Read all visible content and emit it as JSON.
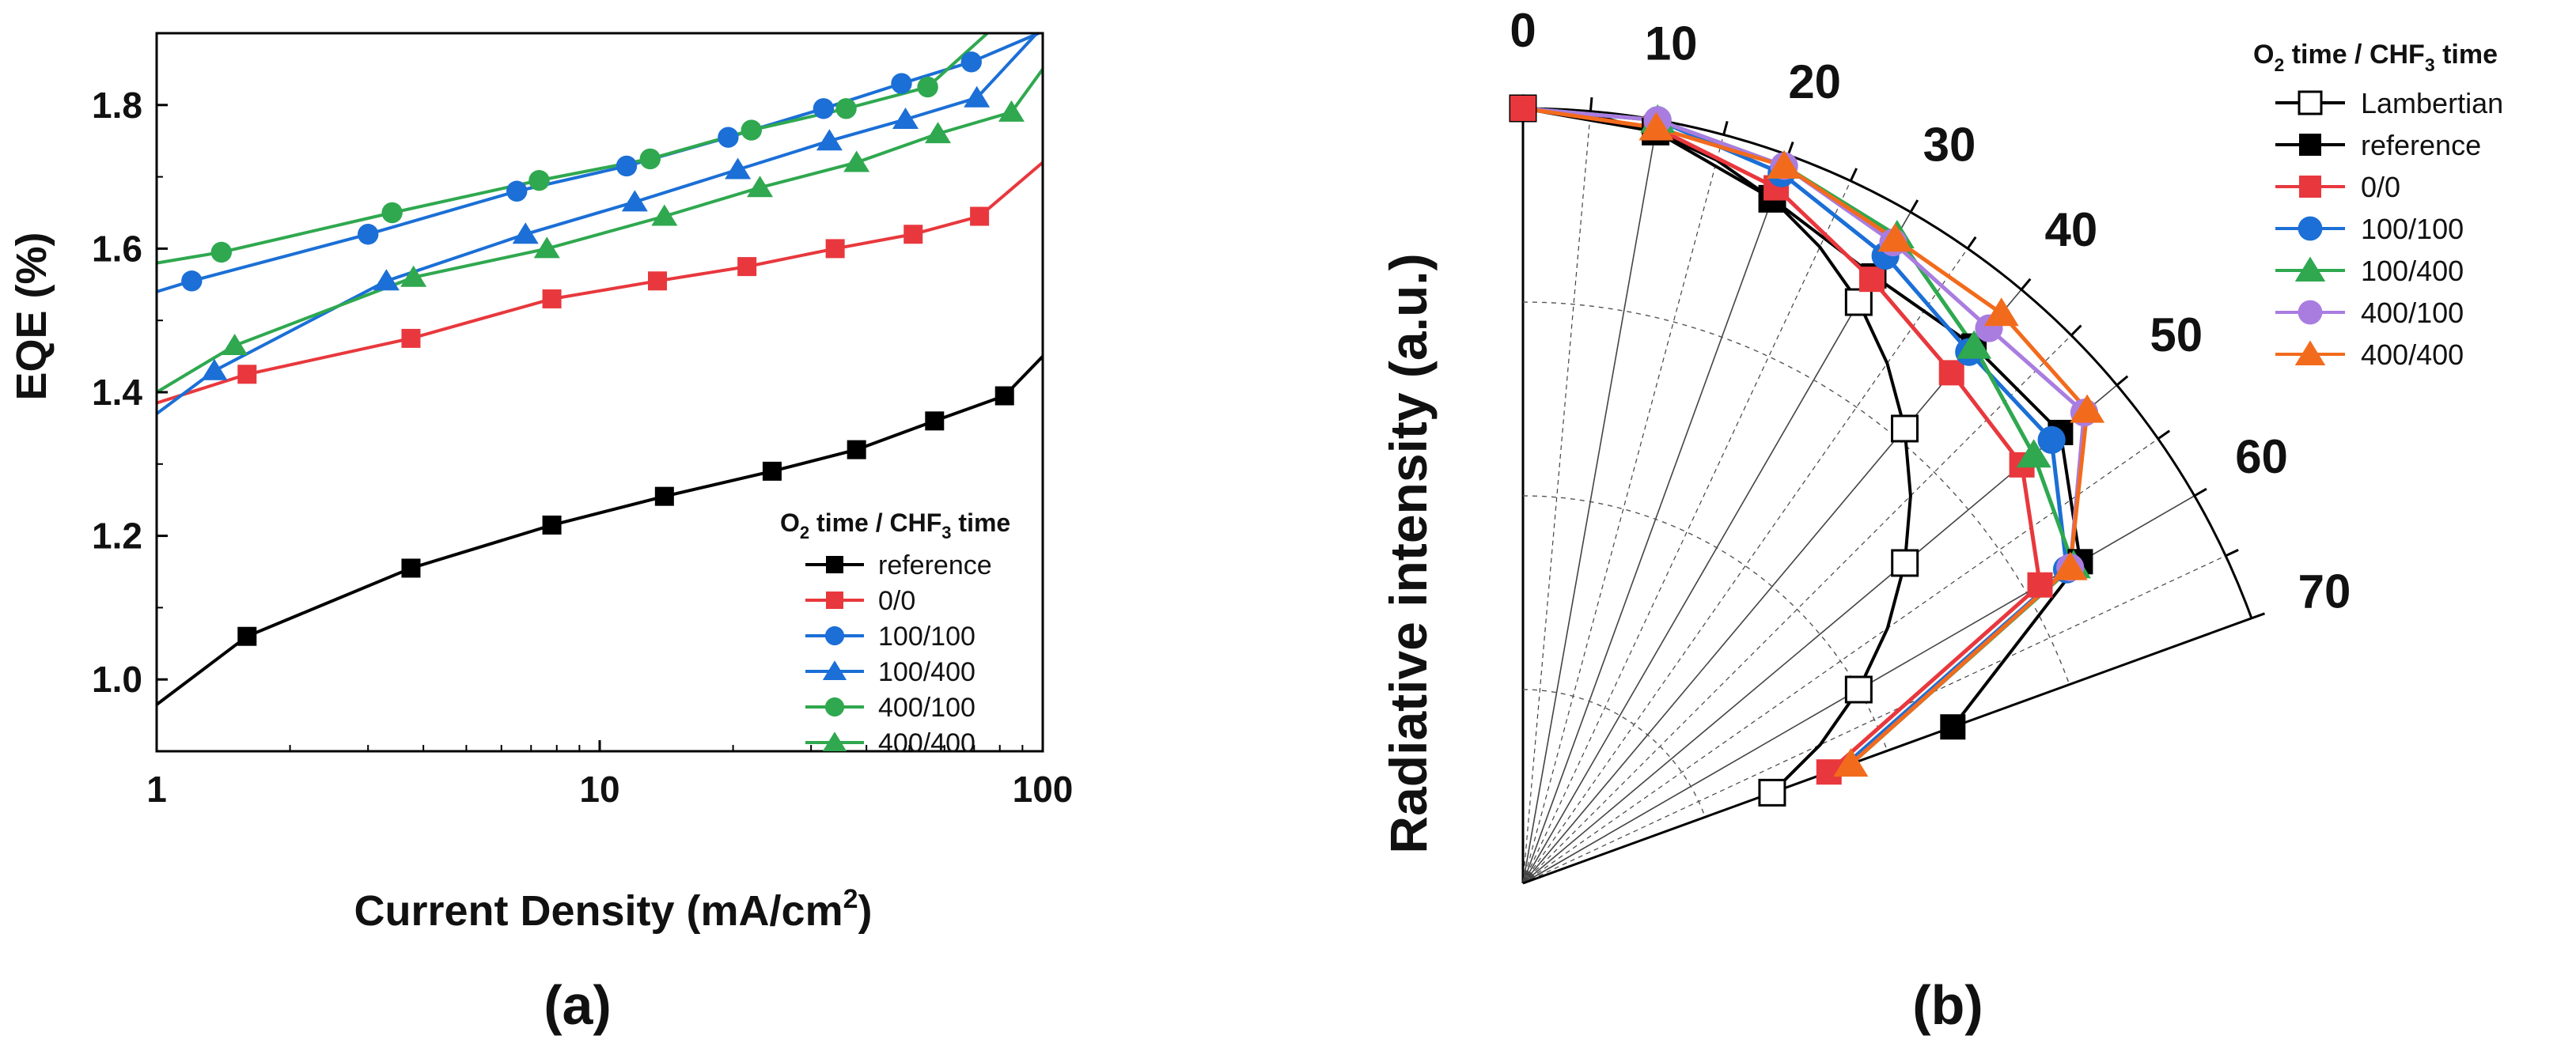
{
  "chart_data": [
    {
      "type": "line",
      "panel_label": "(a)",
      "xlabel": "Current Density (mA/cm",
      "xlabel_sup": "2",
      "xlabel_end": ")",
      "ylabel": "EQE (%)",
      "xscale": "log",
      "xlim": [
        1,
        100
      ],
      "ylim": [
        0.9,
        1.9
      ],
      "xticks": [
        1,
        10,
        100
      ],
      "xticklabels": [
        "1",
        "10",
        "100"
      ],
      "yticks": [
        1.0,
        1.2,
        1.4,
        1.6,
        1.8
      ],
      "yticklabels": [
        "1.0",
        "1.2",
        "1.4",
        "1.6",
        "1.8"
      ],
      "legend": {
        "position": "lower-right",
        "title_parts": [
          "O",
          "2",
          " time / CHF",
          "3",
          " time"
        ],
        "entries": [
          "reference",
          "0/0",
          "100/100",
          "100/400",
          "400/100",
          "400/400"
        ]
      },
      "series": [
        {
          "name": "reference",
          "color": "#000000",
          "marker": "square",
          "x": [
            1.6,
            3.75,
            7.8,
            14,
            24.5,
            38,
            57,
            82
          ],
          "y": [
            1.06,
            1.155,
            1.215,
            1.255,
            1.29,
            1.32,
            1.36,
            1.395
          ],
          "line_x": [
            1,
            1.6,
            3.75,
            7.8,
            14,
            24.5,
            38,
            57,
            82,
            100
          ],
          "line_y": [
            0.965,
            1.06,
            1.155,
            1.215,
            1.255,
            1.29,
            1.32,
            1.36,
            1.395,
            1.45
          ]
        },
        {
          "name": "0/0",
          "color": "#e8383d",
          "marker": "square",
          "x": [
            1.6,
            3.75,
            7.8,
            13.5,
            21.5,
            34,
            51,
            72
          ],
          "y": [
            1.425,
            1.475,
            1.53,
            1.555,
            1.575,
            1.6,
            1.62,
            1.645
          ],
          "line_x": [
            1,
            1.6,
            3.75,
            7.8,
            13.5,
            21.5,
            34,
            51,
            72,
            100
          ],
          "line_y": [
            1.385,
            1.425,
            1.475,
            1.53,
            1.555,
            1.575,
            1.6,
            1.62,
            1.645,
            1.72
          ]
        },
        {
          "name": "100/100",
          "color": "#1b6fd6",
          "marker": "circle",
          "x": [
            1.2,
            3.0,
            6.5,
            11.5,
            19.5,
            32,
            48,
            69
          ],
          "y": [
            1.555,
            1.62,
            1.68,
            1.715,
            1.755,
            1.795,
            1.83,
            1.86
          ],
          "line_x": [
            1,
            1.2,
            3.0,
            6.5,
            11.5,
            19.5,
            32,
            48,
            69,
            98
          ],
          "line_y": [
            1.54,
            1.555,
            1.62,
            1.68,
            1.715,
            1.755,
            1.795,
            1.83,
            1.86,
            1.9
          ]
        },
        {
          "name": "100/400",
          "color": "#1b6fd6",
          "marker": "triangle",
          "x": [
            1.35,
            3.3,
            6.8,
            12,
            20.5,
            33,
            49,
            71
          ],
          "y": [
            1.43,
            1.555,
            1.62,
            1.665,
            1.71,
            1.75,
            1.78,
            1.81
          ],
          "line_x": [
            1,
            1.35,
            3.3,
            6.8,
            12,
            20.5,
            33,
            49,
            71,
            97
          ],
          "line_y": [
            1.37,
            1.43,
            1.555,
            1.62,
            1.665,
            1.71,
            1.75,
            1.78,
            1.81,
            1.9
          ]
        },
        {
          "name": "400/100",
          "color": "#2fa84f",
          "marker": "circle",
          "x": [
            1.4,
            3.4,
            7.3,
            13,
            22,
            36,
            55
          ],
          "y": [
            1.595,
            1.65,
            1.695,
            1.725,
            1.765,
            1.795,
            1.825
          ],
          "line_x": [
            1,
            1.4,
            3.4,
            7.3,
            13,
            22,
            36,
            55,
            75
          ],
          "line_y": [
            1.58,
            1.595,
            1.65,
            1.695,
            1.725,
            1.765,
            1.795,
            1.825,
            1.9
          ]
        },
        {
          "name": "400/400",
          "color": "#2fa84f",
          "marker": "triangle",
          "x": [
            1.5,
            3.8,
            7.6,
            14,
            23,
            38,
            58,
            85
          ],
          "y": [
            1.465,
            1.56,
            1.6,
            1.645,
            1.685,
            1.72,
            1.76,
            1.79
          ],
          "line_x": [
            1,
            1.5,
            3.8,
            7.6,
            14,
            23,
            38,
            58,
            85,
            100
          ],
          "line_y": [
            1.4,
            1.465,
            1.56,
            1.6,
            1.645,
            1.685,
            1.72,
            1.76,
            1.79,
            1.85
          ]
        }
      ]
    },
    {
      "type": "polar",
      "panel_label": "(b)",
      "ylabel": "Radiative intensity (a.u.)",
      "theta_range_deg": [
        0,
        70
      ],
      "radius_range": [
        0,
        1
      ],
      "theta_ticks": [
        0,
        10,
        20,
        30,
        40,
        50,
        60,
        70
      ],
      "theta_ticklabels": [
        "0",
        "10",
        "20",
        "30",
        "40",
        "50",
        "60",
        "70"
      ],
      "legend": {
        "position": "top-right",
        "title_parts": [
          "O",
          "2",
          " time / CHF",
          "3",
          " time"
        ],
        "entries": [
          "Lambertian",
          "reference",
          "0/0",
          "100/100",
          "100/400",
          "400/100",
          "400/400"
        ]
      },
      "series": [
        {
          "name": "Lambertian",
          "color": "#000000",
          "marker": "square-open",
          "theta_marker": [
            0,
            10,
            20,
            30,
            40,
            50,
            60,
            70
          ],
          "r_marker": [
            1.0,
            0.985,
            0.94,
            0.866,
            0.766,
            0.643,
            0.5,
            0.342
          ],
          "theta_line": [
            0,
            5,
            10,
            15,
            20,
            25,
            30,
            35,
            40,
            45,
            50,
            55,
            60,
            65,
            70
          ],
          "r_line": [
            1.0,
            0.996,
            0.985,
            0.966,
            0.94,
            0.906,
            0.866,
            0.819,
            0.766,
            0.707,
            0.643,
            0.574,
            0.5,
            0.423,
            0.342
          ]
        },
        {
          "name": "reference",
          "color": "#000000",
          "marker": "square",
          "theta_marker": [
            0,
            10,
            20,
            30,
            40,
            50,
            60,
            70
          ],
          "r_marker": [
            1.0,
            0.985,
            0.94,
            0.905,
            0.905,
            0.905,
            0.83,
            0.59
          ],
          "theta_line": [
            0,
            10,
            20,
            30,
            40,
            50,
            60,
            70
          ],
          "r_line": [
            1.0,
            0.985,
            0.94,
            0.905,
            0.905,
            0.905,
            0.83,
            0.59
          ]
        },
        {
          "name": "0/0",
          "color": "#e8383d",
          "marker": "square",
          "theta_marker": [
            0,
            10,
            20,
            30,
            40,
            50,
            60,
            70
          ],
          "r_marker": [
            1.0,
            0.99,
            0.955,
            0.9,
            0.86,
            0.84,
            0.77,
            0.42
          ],
          "theta_line": [
            0,
            10,
            20,
            30,
            40,
            50,
            60,
            70
          ],
          "r_line": [
            1.0,
            0.99,
            0.955,
            0.9,
            0.86,
            0.84,
            0.77,
            0.42
          ]
        },
        {
          "name": "100/100",
          "color": "#1b6fd6",
          "marker": "circle",
          "theta_marker": [
            10,
            20,
            30,
            40,
            50,
            60
          ],
          "r_marker": [
            1.0,
            0.975,
            0.935,
            0.895,
            0.89,
            0.81
          ],
          "theta_line": [
            0,
            10,
            20,
            30,
            40,
            50,
            60,
            70
          ],
          "r_line": [
            1.0,
            1.0,
            0.975,
            0.935,
            0.895,
            0.89,
            0.81,
            0.44
          ]
        },
        {
          "name": "100/400",
          "color": "#2fa84f",
          "marker": "triangle",
          "theta_marker": [
            10,
            20,
            30,
            40,
            50,
            60
          ],
          "r_marker": [
            1.0,
            0.985,
            0.965,
            0.905,
            0.86,
            0.82
          ],
          "theta_line": [
            0,
            10,
            20,
            30,
            40,
            50,
            60,
            70
          ],
          "r_line": [
            1.0,
            1.0,
            0.985,
            0.965,
            0.905,
            0.86,
            0.82,
            0.45
          ]
        },
        {
          "name": "400/100",
          "color": "#a97de0",
          "marker": "circle",
          "theta_marker": [
            10,
            20,
            30,
            40,
            50,
            60
          ],
          "r_marker": [
            1.0,
            0.985,
            0.955,
            0.935,
            0.945,
            0.815
          ],
          "theta_line": [
            0,
            10,
            20,
            30,
            40,
            50,
            60,
            70
          ],
          "r_line": [
            1.0,
            1.0,
            0.985,
            0.955,
            0.935,
            0.945,
            0.815,
            0.45
          ]
        },
        {
          "name": "400/400",
          "color": "#f26b1d",
          "marker": "triangle",
          "theta_marker": [
            10,
            20,
            30,
            40,
            50,
            60,
            70
          ],
          "r_marker": [
            0.99,
            0.985,
            0.96,
            0.96,
            0.95,
            0.815,
            0.45
          ],
          "theta_line": [
            0,
            10,
            20,
            30,
            40,
            50,
            60,
            70
          ],
          "r_line": [
            1.0,
            0.99,
            0.985,
            0.96,
            0.96,
            0.95,
            0.815,
            0.45
          ]
        }
      ]
    }
  ]
}
